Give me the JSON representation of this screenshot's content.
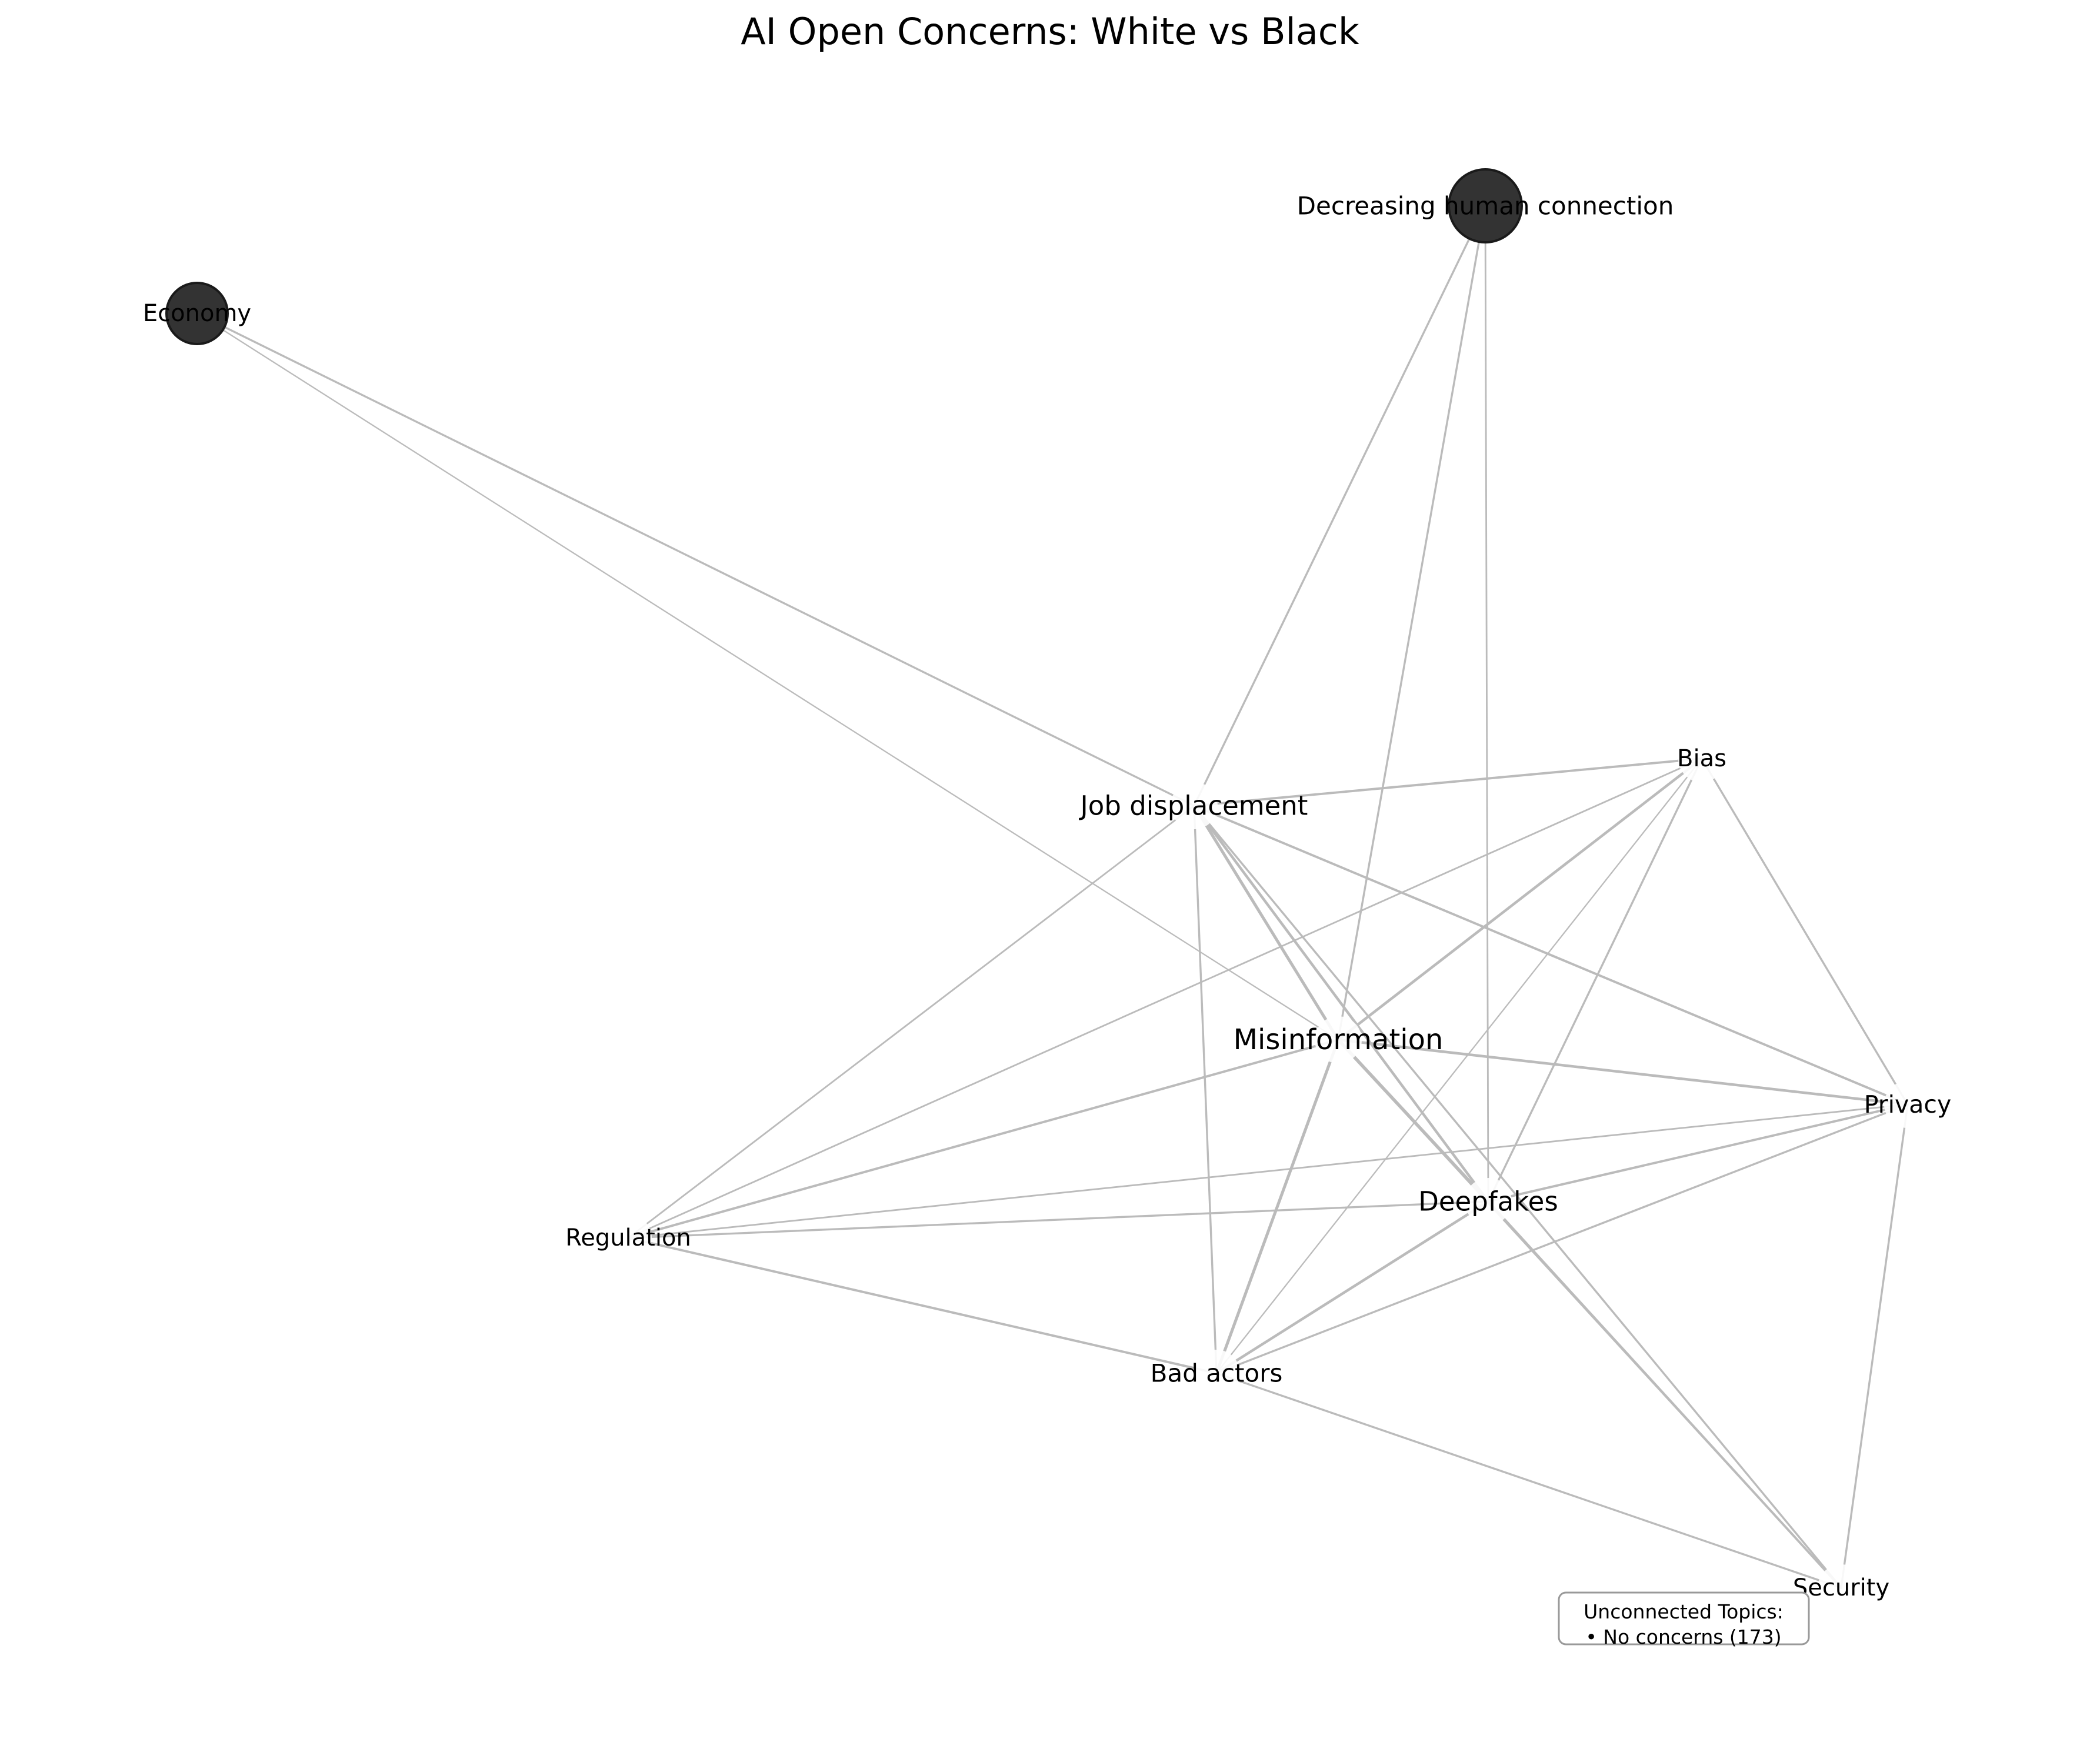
{
  "title": "AI Open Concerns: White vs Black",
  "nodes": [
    {
      "id": "decreasing",
      "label": "Decreasing human connection",
      "filled": true,
      "size": "large"
    },
    {
      "id": "economy",
      "label": "Economy",
      "filled": true,
      "size": "medium"
    },
    {
      "id": "bias",
      "label": "Bias",
      "filled": false
    },
    {
      "id": "job",
      "label": "Job displacement",
      "filled": false
    },
    {
      "id": "misinfo",
      "label": "Misinformation",
      "filled": false
    },
    {
      "id": "privacy",
      "label": "Privacy",
      "filled": false
    },
    {
      "id": "deepfakes",
      "label": "Deepfakes",
      "filled": false
    },
    {
      "id": "regulation",
      "label": "Regulation",
      "filled": false
    },
    {
      "id": "badactors",
      "label": "Bad actors",
      "filled": false
    },
    {
      "id": "security",
      "label": "Security",
      "filled": false
    }
  ],
  "edges": [
    {
      "source": "economy",
      "target": "job",
      "weight": 2
    },
    {
      "source": "economy",
      "target": "misinfo",
      "weight": 1
    },
    {
      "source": "decreasing",
      "target": "job",
      "weight": 2
    },
    {
      "source": "decreasing",
      "target": "misinfo",
      "weight": 2
    },
    {
      "source": "decreasing",
      "target": "deepfakes",
      "weight": 1.5
    },
    {
      "source": "job",
      "target": "bias",
      "weight": 2.5
    },
    {
      "source": "job",
      "target": "privacy",
      "weight": 2.5
    },
    {
      "source": "job",
      "target": "misinfo",
      "weight": 3.5
    },
    {
      "source": "job",
      "target": "deepfakes",
      "weight": 3
    },
    {
      "source": "job",
      "target": "regulation",
      "weight": 1.5
    },
    {
      "source": "job",
      "target": "badactors",
      "weight": 2
    },
    {
      "source": "job",
      "target": "security",
      "weight": 2
    },
    {
      "source": "bias",
      "target": "misinfo",
      "weight": 3
    },
    {
      "source": "bias",
      "target": "regulation",
      "weight": 1.5
    },
    {
      "source": "bias",
      "target": "deepfakes",
      "weight": 2
    },
    {
      "source": "bias",
      "target": "privacy",
      "weight": 2
    },
    {
      "source": "bias",
      "target": "badactors",
      "weight": 1
    },
    {
      "source": "misinfo",
      "target": "privacy",
      "weight": 3
    },
    {
      "source": "misinfo",
      "target": "deepfakes",
      "weight": 4
    },
    {
      "source": "misinfo",
      "target": "regulation",
      "weight": 2.5
    },
    {
      "source": "misinfo",
      "target": "badactors",
      "weight": 3.5
    },
    {
      "source": "misinfo",
      "target": "security",
      "weight": 1.5
    },
    {
      "source": "privacy",
      "target": "deepfakes",
      "weight": 2.5
    },
    {
      "source": "privacy",
      "target": "regulation",
      "weight": 1.5
    },
    {
      "source": "privacy",
      "target": "badactors",
      "weight": 2
    },
    {
      "source": "privacy",
      "target": "security",
      "weight": 2
    },
    {
      "source": "deepfakes",
      "target": "regulation",
      "weight": 2
    },
    {
      "source": "deepfakes",
      "target": "badactors",
      "weight": 3
    },
    {
      "source": "deepfakes",
      "target": "security",
      "weight": 2.5
    },
    {
      "source": "regulation",
      "target": "badactors",
      "weight": 2.5
    },
    {
      "source": "badactors",
      "target": "security",
      "weight": 2
    }
  ],
  "unconnected": {
    "heading": "Unconnected Topics:",
    "items": [
      "• No concerns (173)"
    ]
  },
  "colors": {
    "node_fill": "#333333",
    "node_stroke": "#1a1a1a",
    "edge": "#bbbbbb",
    "text": "#000000",
    "box_border": "#999999"
  }
}
